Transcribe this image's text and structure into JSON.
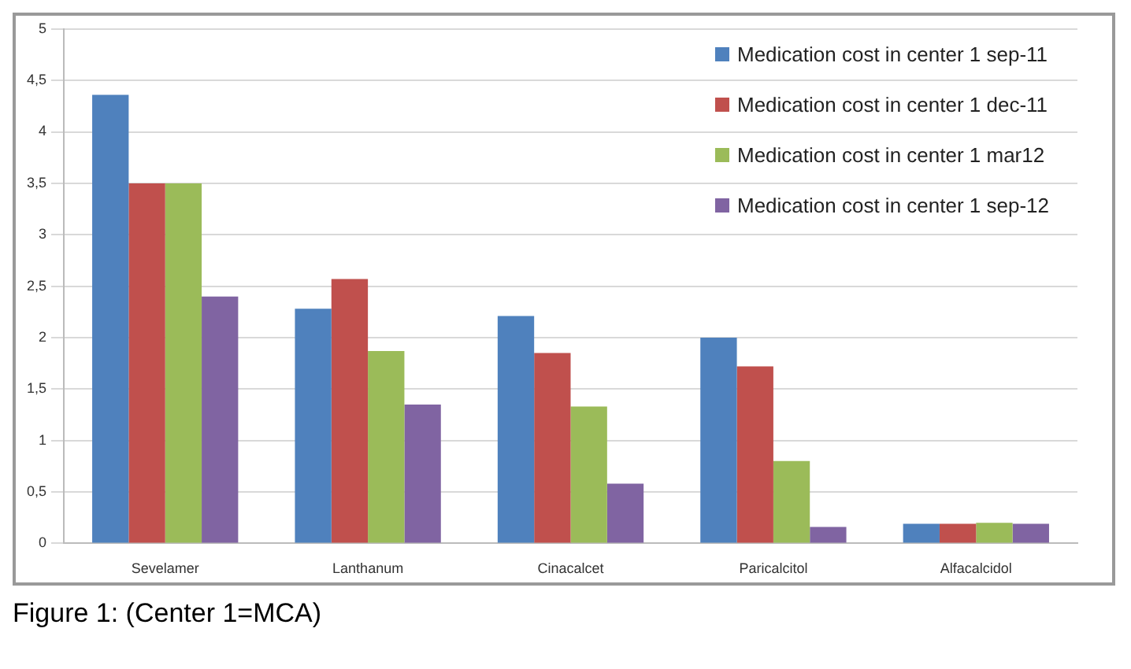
{
  "chart_data": {
    "type": "bar",
    "categories": [
      "Sevelamer",
      "Lanthanum",
      "Cinacalcet",
      "Paricalcitol",
      "Alfacalcidol"
    ],
    "series": [
      {
        "name": "Medication cost in center 1 sep-11",
        "color": "#4f81bd",
        "values": [
          4.36,
          2.28,
          2.21,
          2.0,
          0.19
        ]
      },
      {
        "name": "Medication cost in center 1 dec-11",
        "color": "#c0504d",
        "values": [
          3.5,
          2.57,
          1.85,
          1.72,
          0.19
        ]
      },
      {
        "name": "Medication cost in center 1 mar12",
        "color": "#9bbb59",
        "values": [
          3.5,
          1.87,
          1.33,
          0.8,
          0.2
        ]
      },
      {
        "name": "Medication cost in center 1 sep-12",
        "color": "#8064a2",
        "values": [
          2.4,
          1.35,
          0.58,
          0.16,
          0.19
        ]
      }
    ],
    "ylim": [
      0,
      5
    ],
    "yticks": [
      0,
      {
        "value": 0.5,
        "label": "0,5"
      },
      1,
      {
        "value": 1.5,
        "label": "1,5"
      },
      2,
      {
        "value": 2.5,
        "label": "2,5"
      },
      3,
      {
        "value": 3.5,
        "label": "3,5"
      },
      4,
      {
        "value": 4.5,
        "label": "4,5"
      },
      5
    ],
    "grid": "y",
    "legend": "top right",
    "annotations": [
      "Figure 1: (Center 1=MCA)"
    ]
  }
}
